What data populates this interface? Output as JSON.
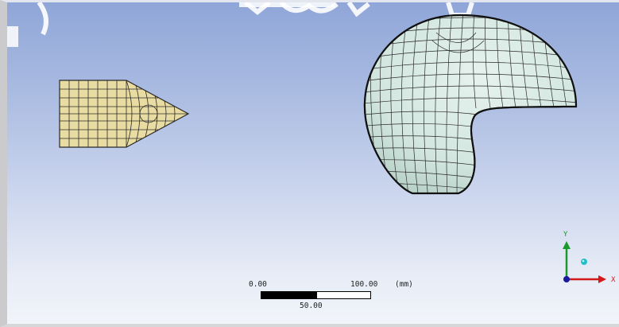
{
  "scale_bar": {
    "start_label": "0.00",
    "end_label": "100.00",
    "unit_label": "(mm)",
    "mid_label": "50.00"
  },
  "triad": {
    "y_label": "Y",
    "x_label": "X",
    "colors": {
      "x_axis": "#d21a1a",
      "y_axis": "#1a9a2a",
      "z_axis": "#1a1aa0",
      "iso_ball": "#20c0c8"
    }
  },
  "models": {
    "projectile_color": "#e9dca2",
    "target_color": "#d7e9e2",
    "mesh_line_color": "#2a2a2a"
  },
  "background": {
    "top": "#8fa6d8",
    "bottom": "#f1f4fa"
  }
}
